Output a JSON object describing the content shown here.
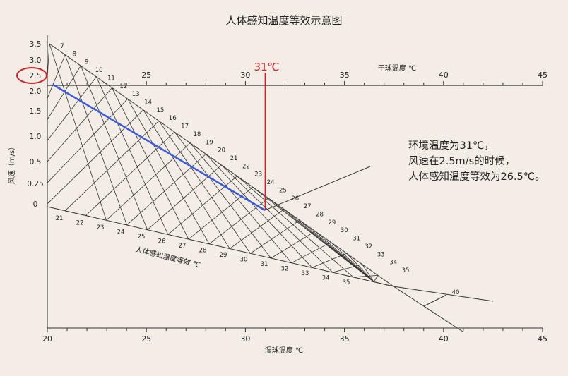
{
  "title": "人体感知温度等效示意图",
  "annotation": {
    "lines": [
      "环境温度为31℃，",
      "风速在2.5m/s的时候，",
      "人体感知温度等效为26.5℃。"
    ]
  },
  "colors": {
    "background": "#f3ede6",
    "grid": "#333333",
    "highlight_line": "#3b5bdb",
    "marker": "#c8242a"
  },
  "chart_data": {
    "type": "nomogram",
    "title": "人体感知温度等效示意图",
    "wind_axis": {
      "label": "风速（m/s）",
      "ticks": [
        "3.5",
        "3.0",
        "2.5",
        "2.0",
        "1.5",
        "1.0",
        "0.5",
        "0.25",
        "0"
      ],
      "highlighted_tick": "2.5"
    },
    "dry_bulb_axis": {
      "label": "干球温度 ℃",
      "ticks": [
        "25",
        "30",
        "35",
        "40",
        "45"
      ],
      "range": [
        20,
        45
      ]
    },
    "wet_bulb_axis": {
      "label": "湿球温度 ℃",
      "ticks": [
        "20",
        "25",
        "30",
        "35",
        "40",
        "45"
      ],
      "range": [
        20,
        45
      ]
    },
    "effective_temperature": {
      "label": "人体感知温度等效 ℃",
      "upper_labels": [
        "7",
        "8",
        "9",
        "10",
        "11",
        "12",
        "13",
        "14",
        "15",
        "16",
        "17",
        "18",
        "19",
        "20",
        "21",
        "22",
        "23",
        "24",
        "25",
        "26",
        "27",
        "28",
        "29",
        "30",
        "31",
        "32",
        "33",
        "34",
        "35"
      ],
      "lower_labels": [
        "21",
        "22",
        "23",
        "24",
        "25",
        "26",
        "27",
        "28",
        "29",
        "30",
        "31",
        "32",
        "33",
        "34",
        "35"
      ],
      "extra_label": "40"
    },
    "example": {
      "dry_bulb_temp_label": "31℃",
      "dry_bulb_temp": 31,
      "wind_speed": 2.5,
      "effective_temp": 26.5
    }
  }
}
